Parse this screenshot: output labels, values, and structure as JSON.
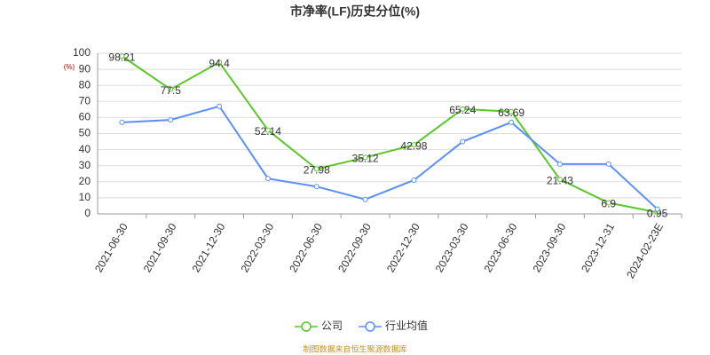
{
  "chart_data": {
    "type": "line",
    "title": "市净率(LF)历史分位(%)",
    "y_unit": "(%)",
    "categories": [
      "2021-06-30",
      "2021-09-30",
      "2021-12-30",
      "2022-03-30",
      "2022-06-30",
      "2022-09-30",
      "2022-12-30",
      "2023-03-30",
      "2023-06-30",
      "2023-09-30",
      "2023-12-31",
      "2024-02-23E"
    ],
    "series": [
      {
        "name": "公司",
        "color": "#5cc62a",
        "values": [
          98.21,
          77.5,
          94.4,
          52.14,
          27.98,
          35.12,
          42.98,
          65.24,
          63.69,
          21.43,
          6.9,
          0.95
        ],
        "show_labels": true
      },
      {
        "name": "行业均值",
        "color": "#5b8ff9",
        "values": [
          57,
          58.5,
          67,
          22,
          17,
          9,
          21,
          45,
          57,
          31,
          31,
          3
        ]
      }
    ],
    "ylim": [
      0,
      100
    ],
    "yticks": [
      0,
      10,
      20,
      30,
      40,
      50,
      60,
      70,
      80,
      90,
      100
    ],
    "grid": true,
    "legend": "bottom",
    "footnote": "制图数据来自恒生聚源数据库"
  }
}
